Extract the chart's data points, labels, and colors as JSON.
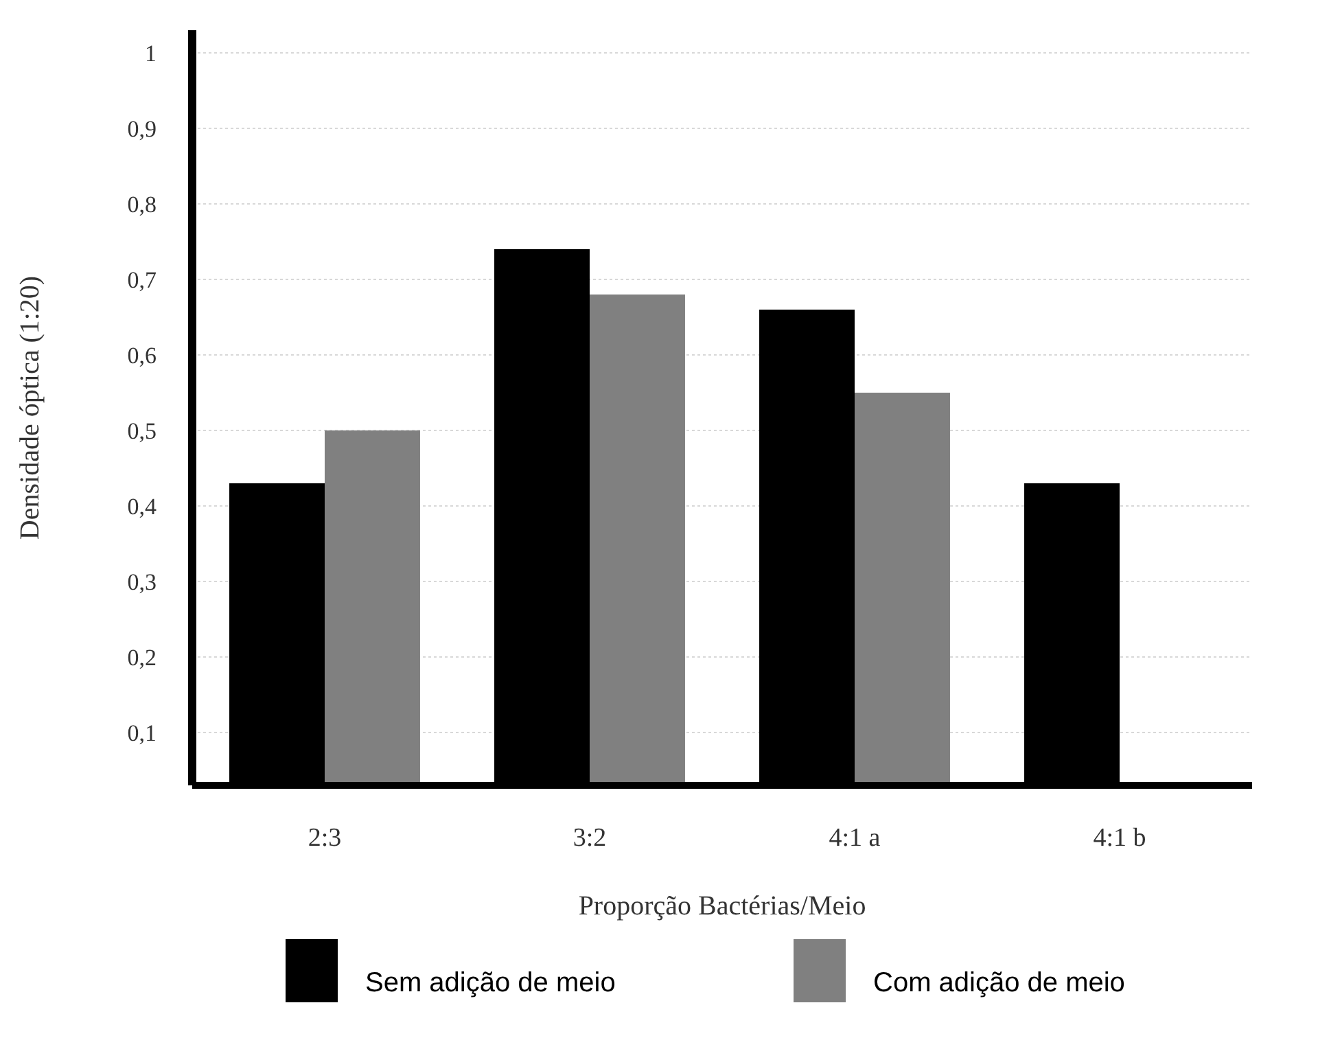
{
  "chart_data": {
    "type": "bar",
    "xlabel": "Proporção Bactérias/Meio",
    "ylabel": "Densidade óptica (1:20)",
    "categories": [
      "2:3",
      "3:2",
      "4:1 a",
      "4:1 b"
    ],
    "series": [
      {
        "name": "Sem adição de meio",
        "color": "#000000",
        "values": [
          0.43,
          0.74,
          0.66,
          0.43
        ]
      },
      {
        "name": "Com adição de meio",
        "color": "#808080",
        "values": [
          0.5,
          0.68,
          0.55,
          null
        ]
      }
    ],
    "ylim": [
      0.03,
      1.03
    ],
    "yticks": [
      {
        "value": 0.1,
        "label": "0,1"
      },
      {
        "value": 0.2,
        "label": "0,2"
      },
      {
        "value": 0.3,
        "label": "0,3"
      },
      {
        "value": 0.4,
        "label": "0,4"
      },
      {
        "value": 0.5,
        "label": "0,5"
      },
      {
        "value": 0.6,
        "label": "0,6"
      },
      {
        "value": 0.7,
        "label": "0,7"
      },
      {
        "value": 0.8,
        "label": "0,8"
      },
      {
        "value": 0.9,
        "label": "0,9"
      },
      {
        "value": 1,
        "label": "1"
      }
    ],
    "grid": true,
    "legend": "bottom"
  }
}
